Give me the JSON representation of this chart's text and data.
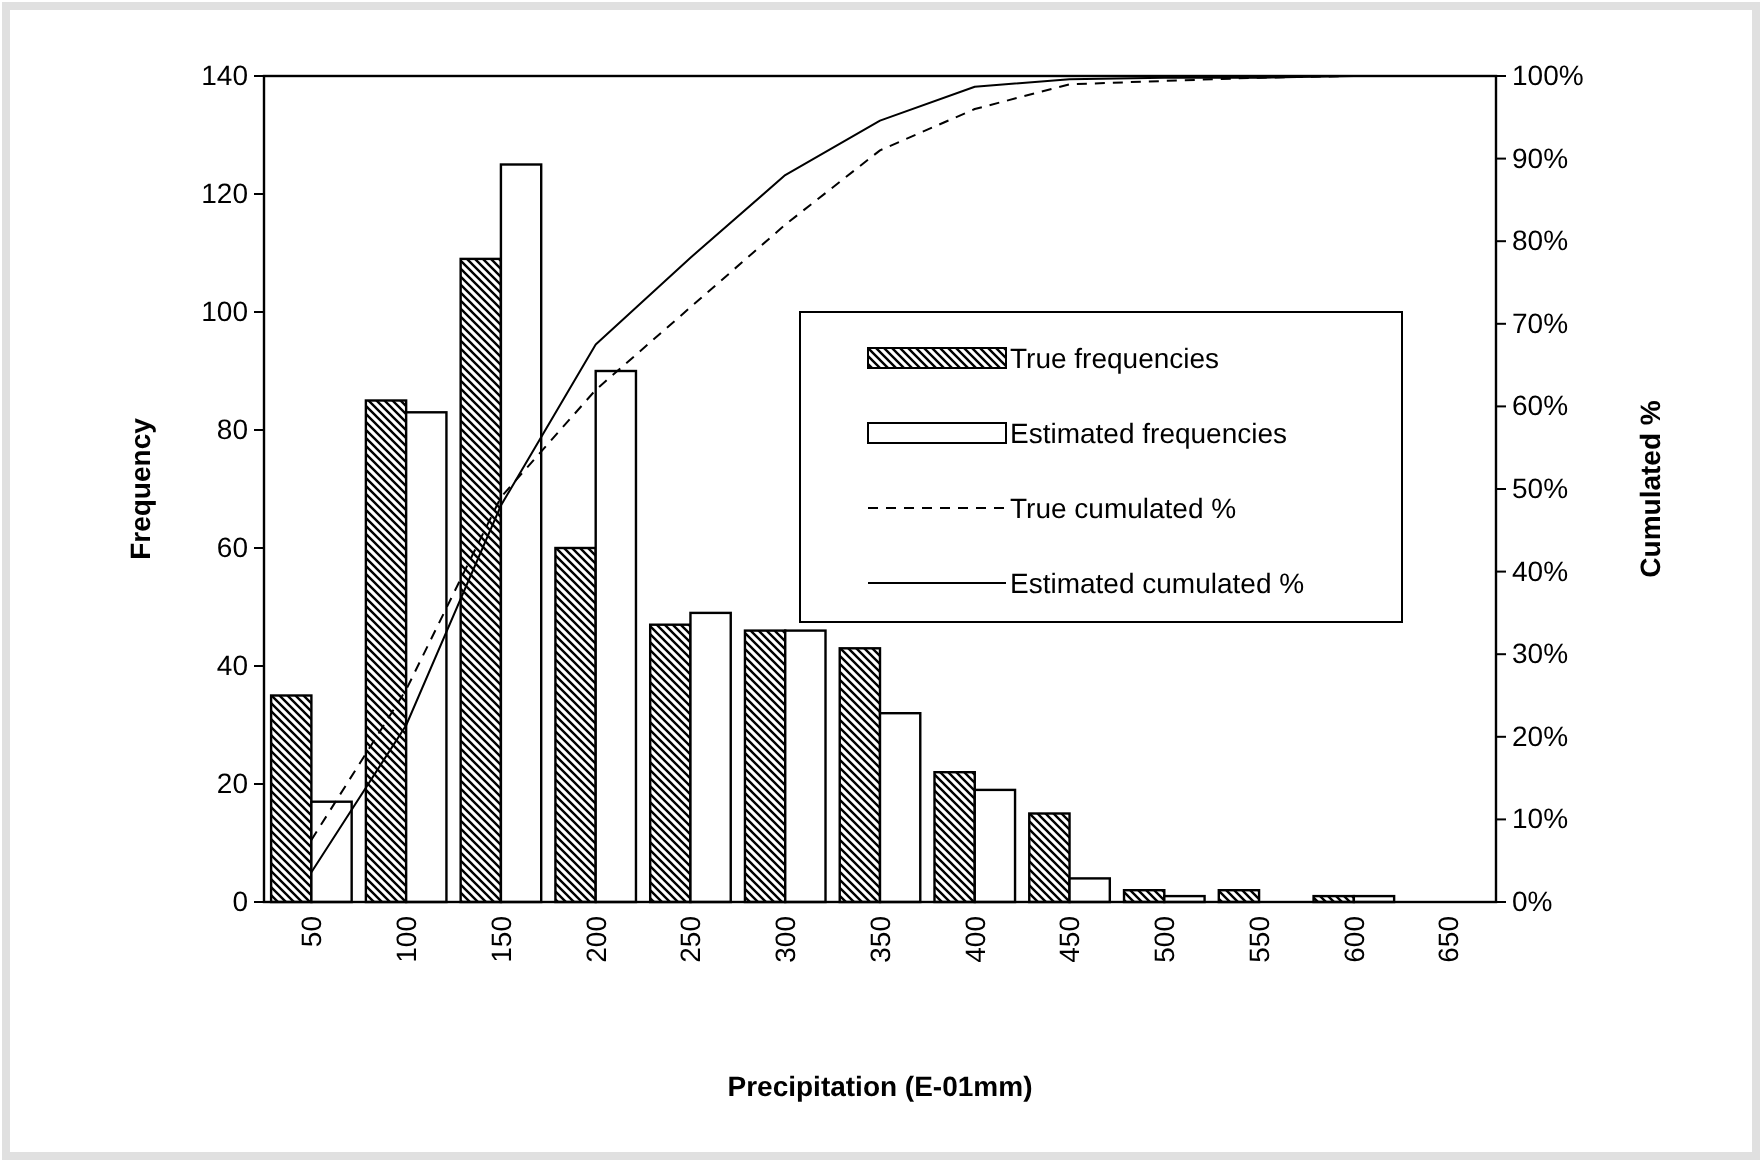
{
  "chart_data": {
    "type": "bar",
    "xlabel": "Precipitation (E-01mm)",
    "ylabel": "Frequency",
    "y2label": "Cumulated %",
    "categories": [
      "50",
      "100",
      "150",
      "200",
      "250",
      "300",
      "350",
      "400",
      "450",
      "500",
      "550",
      "600",
      "650"
    ],
    "series": [
      {
        "name": "True frequencies",
        "color": "#000000",
        "values": [
          35,
          85,
          109,
          60,
          47,
          46,
          43,
          22,
          15,
          2,
          2,
          1,
          0
        ]
      },
      {
        "name": "Estimated frequencies",
        "color": "#ffffff",
        "values": [
          17,
          83,
          125,
          90,
          49,
          46,
          32,
          19,
          4,
          1,
          0,
          1,
          0
        ]
      },
      {
        "name": "True cumulated %",
        "type": "line",
        "axis": "y2",
        "color": "#000000",
        "line_style": "dashed",
        "values": [
          7.5,
          25.7,
          49,
          62,
          72,
          82,
          91,
          96,
          99,
          99.4,
          99.8,
          100,
          100
        ]
      },
      {
        "name": "Estimated cumulated %",
        "type": "line",
        "axis": "y2",
        "color": "#000000",
        "line_style": "solid",
        "values": [
          3.6,
          21.4,
          48,
          67.5,
          78,
          88,
          94.6,
          98.7,
          99.6,
          99.8,
          99.8,
          100,
          100
        ]
      }
    ],
    "ylim": [
      0,
      140
    ],
    "yticks": [
      0,
      20,
      40,
      60,
      80,
      100,
      120,
      140
    ],
    "y2lim": [
      0,
      100
    ],
    "y2ticks": [
      {
        "value": 0,
        "label": "0%"
      },
      {
        "value": 10,
        "label": "10%"
      },
      {
        "value": 20,
        "label": "20%"
      },
      {
        "value": 30,
        "label": "30%"
      },
      {
        "value": 40,
        "label": "40%"
      },
      {
        "value": 50,
        "label": "50%"
      },
      {
        "value": 60,
        "label": "60%"
      },
      {
        "value": 70,
        "label": "70%"
      },
      {
        "value": 80,
        "label": "80%"
      },
      {
        "value": 90,
        "label": "90%"
      },
      {
        "value": 100,
        "label": "100%"
      }
    ],
    "legend": "right",
    "grid": false
  }
}
